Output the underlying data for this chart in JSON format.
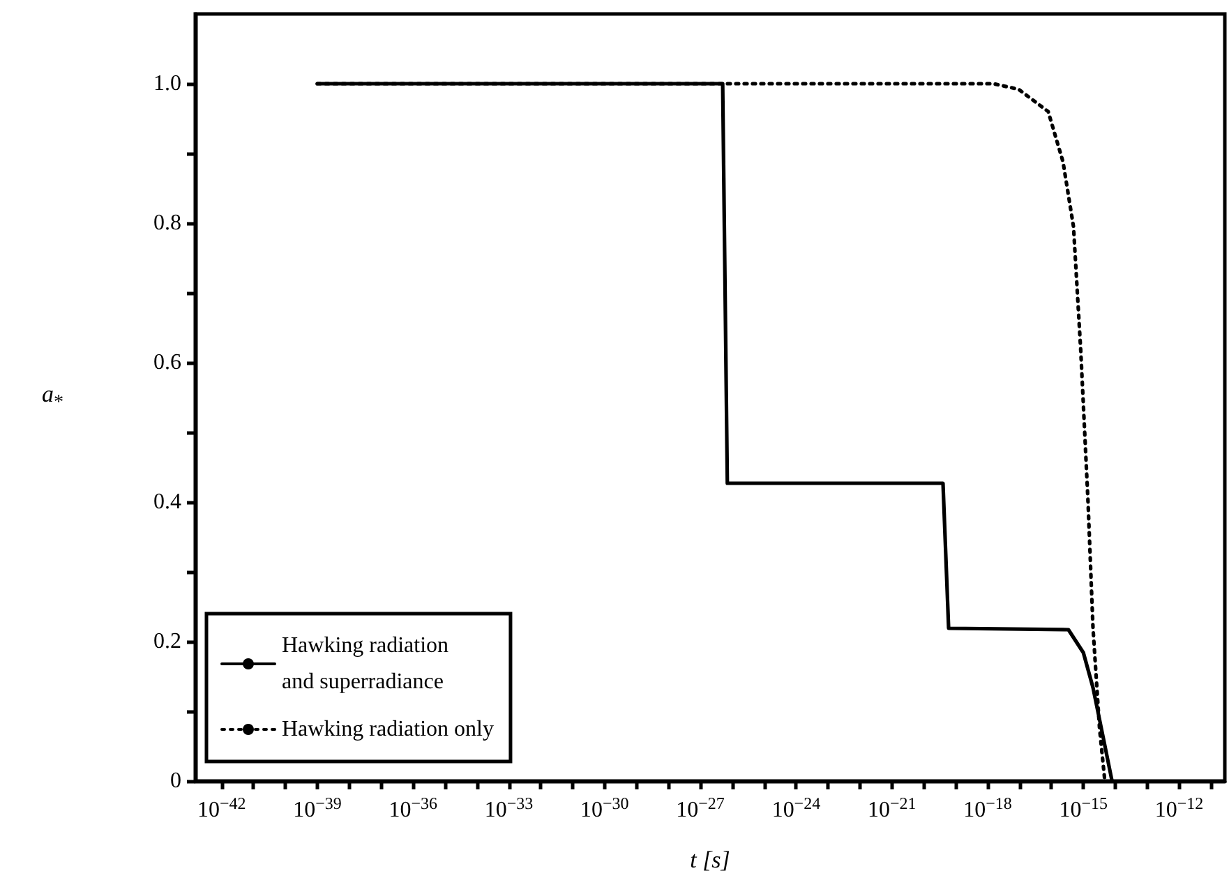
{
  "chart_data": {
    "type": "line",
    "xlabel": "t [s]",
    "ylabel": "a$_{*}$",
    "log": "x",
    "grid": false,
    "legend": "bottom left",
    "marker": "none",
    "xlim": [
      1.5e-43,
      2.7e-11
    ],
    "ylim": [
      0,
      1.1
    ],
    "xticks": [
      {
        "value": 1e-42,
        "label": "10$^{−42}$"
      },
      {
        "value": 1e-41,
        "label": null
      },
      {
        "value": 1e-40,
        "label": null
      },
      {
        "value": 1e-39,
        "label": "10$^{−39}$"
      },
      {
        "value": 1e-38,
        "label": null
      },
      {
        "value": 1e-37,
        "label": null
      },
      {
        "value": 1e-36,
        "label": "10$^{−36}$"
      },
      {
        "value": 1e-35,
        "label": null
      },
      {
        "value": 1e-34,
        "label": null
      },
      {
        "value": 1e-33,
        "label": "10$^{−33}$"
      },
      {
        "value": 1e-32,
        "label": null
      },
      {
        "value": 1e-31,
        "label": null
      },
      {
        "value": 1e-30,
        "label": "10$^{−30}$"
      },
      {
        "value": 1e-29,
        "label": null
      },
      {
        "value": 1e-28,
        "label": null
      },
      {
        "value": 1e-27,
        "label": "10$^{−27}$"
      },
      {
        "value": 1e-26,
        "label": null
      },
      {
        "value": 1e-25,
        "label": null
      },
      {
        "value": 1e-24,
        "label": "10$^{−24}$"
      },
      {
        "value": 1e-23,
        "label": null
      },
      {
        "value": 1e-22,
        "label": null
      },
      {
        "value": 1e-21,
        "label": "10$^{−21}$"
      },
      {
        "value": 1e-20,
        "label": null
      },
      {
        "value": 1e-19,
        "label": null
      },
      {
        "value": 1e-18,
        "label": "10$^{−18}$"
      },
      {
        "value": 1e-17,
        "label": null
      },
      {
        "value": 1e-16,
        "label": null
      },
      {
        "value": 1e-15,
        "label": "10$^{−15}$"
      },
      {
        "value": 1e-14,
        "label": null
      },
      {
        "value": 1e-13,
        "label": null
      },
      {
        "value": 1e-12,
        "label": "10$^{−12}$"
      },
      {
        "value": 1e-11,
        "label": null
      }
    ],
    "yticks": [
      0,
      {
        "value": 0.1,
        "label": null
      },
      0.2,
      {
        "value": 0.3,
        "label": null
      },
      0.4,
      {
        "value": 0.5,
        "label": null
      },
      0.6,
      {
        "value": 0.7,
        "label": null
      },
      0.8,
      {
        "value": 0.9,
        "label": null
      },
      {
        "value": 1,
        "label": "1.0"
      }
    ],
    "series": [
      {
        "name": "Hawking radiation\nand superradiance",
        "color": "#000000",
        "line_style": "solid",
        "x": [
          1e-39,
          5e-27,
          7e-27,
          4e-20,
          6e-20,
          3.4e-16,
          1e-15,
          2e-15,
          4.2e-15,
          7.9e-15
        ],
        "values": [
          1,
          1,
          0.427,
          0.427,
          0.219,
          0.217,
          0.184,
          0.134,
          0.062,
          0
        ]
      },
      {
        "name": "Hawking radiation only",
        "color": "#000000",
        "line_style": "dotted",
        "x": [
          1e-39,
          1.5e-18,
          9.3e-18,
          7.9e-17,
          2.3e-16,
          4.9e-16,
          8.3e-16,
          1.4e-15,
          2e-15,
          3.2e-15,
          4.7e-15
        ],
        "values": [
          1,
          1,
          0.992,
          0.96,
          0.888,
          0.795,
          0.616,
          0.4,
          0.22,
          0.076,
          0
        ]
      }
    ]
  }
}
